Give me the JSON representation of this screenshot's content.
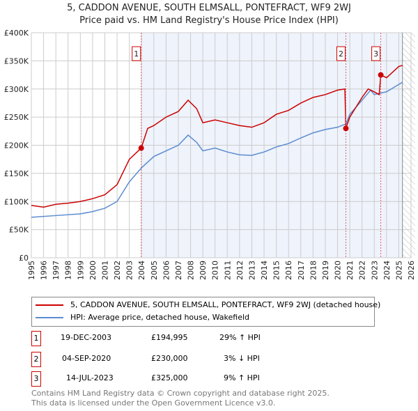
{
  "chart_data": {
    "type": "line",
    "title": "5, CADDON AVENUE, SOUTH ELMSALL, PONTEFRACT, WF9 2WJ",
    "subtitle": "Price paid vs. HM Land Registry's House Price Index (HPI)",
    "xlim": [
      1995,
      2026
    ],
    "ylim": [
      0,
      400000
    ],
    "x_ticks": [
      "1995",
      "1996",
      "1997",
      "1998",
      "1999",
      "2000",
      "2001",
      "2002",
      "2003",
      "2004",
      "2005",
      "2006",
      "2007",
      "2008",
      "2009",
      "2010",
      "2011",
      "2012",
      "2013",
      "2014",
      "2015",
      "2016",
      "2017",
      "2018",
      "2019",
      "2020",
      "2021",
      "2022",
      "2023",
      "2024",
      "2025",
      "2026"
    ],
    "y_ticks": [
      {
        "v": 0,
        "label": "£0"
      },
      {
        "v": 50000,
        "label": "£50K"
      },
      {
        "v": 100000,
        "label": "£100K"
      },
      {
        "v": 150000,
        "label": "£150K"
      },
      {
        "v": 200000,
        "label": "£200K"
      },
      {
        "v": 250000,
        "label": "£250K"
      },
      {
        "v": 300000,
        "label": "£300K"
      },
      {
        "v": 350000,
        "label": "£350K"
      },
      {
        "v": 400000,
        "label": "£400K"
      }
    ],
    "grid": true,
    "series": [
      {
        "name": "5, CADDON AVENUE, SOUTH ELMSALL, PONTEFRACT, WF9 2WJ (detached house)",
        "color": "#cc0000",
        "x": [
          1995,
          1996,
          1997,
          1998,
          1999,
          2000,
          2001,
          2002,
          2003,
          2003.97,
          2004.5,
          2005,
          2006,
          2007,
          2007.8,
          2008.5,
          2009,
          2010,
          2011,
          2012,
          2013,
          2014,
          2015,
          2016,
          2017,
          2018,
          2019,
          2020,
          2020.6,
          2020.68,
          2021,
          2022,
          2022.5,
          2023,
          2023.4,
          2023.53,
          2024,
          2024.5,
          2025,
          2025.3
        ],
        "y": [
          93000,
          90000,
          95000,
          97000,
          100000,
          105000,
          112000,
          130000,
          175000,
          194995,
          230000,
          235000,
          250000,
          260000,
          280000,
          265000,
          240000,
          245000,
          240000,
          235000,
          232000,
          240000,
          255000,
          262000,
          275000,
          285000,
          290000,
          298000,
          300000,
          230000,
          250000,
          285000,
          300000,
          295000,
          290000,
          325000,
          320000,
          330000,
          340000,
          342000
        ]
      },
      {
        "name": "HPI: Average price, detached house, Wakefield",
        "color": "#5b8bd0",
        "x": [
          1995,
          1997,
          1999,
          2000,
          2001,
          2002,
          2003,
          2004,
          2005,
          2006,
          2007,
          2007.8,
          2008.5,
          2009,
          2010,
          2011,
          2012,
          2013,
          2014,
          2015,
          2016,
          2017,
          2018,
          2019,
          2020,
          2020.7,
          2021,
          2022,
          2022.7,
          2023,
          2024,
          2025,
          2025.3
        ],
        "y": [
          72000,
          75000,
          78000,
          82000,
          88000,
          100000,
          135000,
          160000,
          180000,
          190000,
          200000,
          218000,
          205000,
          190000,
          195000,
          188000,
          183000,
          182000,
          188000,
          197000,
          203000,
          213000,
          222000,
          228000,
          232000,
          238000,
          255000,
          280000,
          298000,
          290000,
          295000,
          308000,
          312000
        ]
      }
    ],
    "sales": [
      {
        "n": "1",
        "date": "19-DEC-2003",
        "x": 2003.97,
        "price": "£194,995",
        "value": 194995,
        "hpi": "29% ↑ HPI"
      },
      {
        "n": "2",
        "date": "04-SEP-2020",
        "x": 2020.68,
        "price": "£230,000",
        "value": 230000,
        "hpi": "3% ↓ HPI"
      },
      {
        "n": "3",
        "date": "14-JUL-2023",
        "x": 2023.53,
        "price": "£325,000",
        "value": 325000,
        "hpi": "9% ↑ HPI"
      }
    ],
    "hatch_from": 2025.3
  },
  "footer": {
    "line1": "Contains HM Land Registry data © Crown copyright and database right 2025.",
    "line2": "This data is licensed under the Open Government Licence v3.0."
  }
}
